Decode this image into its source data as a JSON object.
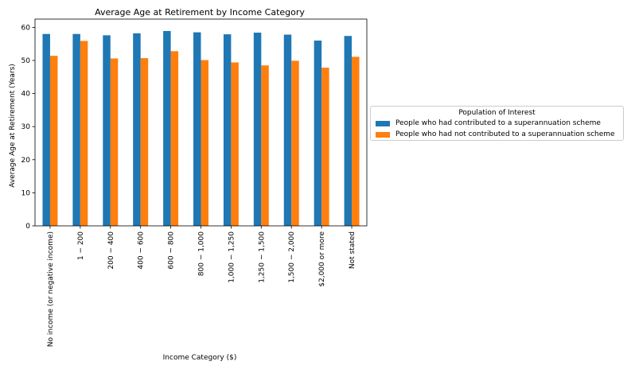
{
  "colors": {
    "contributed": "#1f77b4",
    "not_contributed": "#ff7f0e"
  },
  "chart_data": {
    "type": "bar",
    "title": "Average Age at Retirement by Income Category",
    "xlabel": "Income Category ($)",
    "ylabel": "Average Age at Retirement (Years)",
    "ylim": [
      0,
      62.5
    ],
    "yticks": [
      "0",
      "10",
      "20",
      "30",
      "40",
      "50",
      "60"
    ],
    "categories": [
      "No income (or negative income)",
      "$1-$200",
      "$200-$400",
      "$400-$600",
      "$600-$800",
      "$800-$1,000",
      "$1,000-$1,250",
      "$1,250-$1,500",
      "$1,500-$2,000",
      "$2,000 or more",
      "Not stated"
    ],
    "category_labels_shown": [
      "No income (or negative income)",
      "1 − 200",
      "200 − 400",
      "400 − 600",
      "600 − 800",
      "800 − 1,000",
      "1,000 − 1,250",
      "1,250 − 1,500",
      "1,500 − 2,000",
      "$2,000 or more",
      "Not stated"
    ],
    "series": [
      {
        "name": "People who had contributed to a superannuation scheme",
        "values": [
          58.0,
          58.0,
          57.6,
          58.2,
          58.9,
          58.5,
          57.9,
          58.4,
          57.8,
          56.0,
          57.4
        ]
      },
      {
        "name": "People who had not contributed to a superannuation scheme",
        "values": [
          51.4,
          55.9,
          50.6,
          50.7,
          52.8,
          50.1,
          49.4,
          48.5,
          49.9,
          47.8,
          51.1
        ]
      }
    ],
    "legend": {
      "title": "Population of Interest",
      "placement": "outside-right"
    },
    "grid": false
  }
}
